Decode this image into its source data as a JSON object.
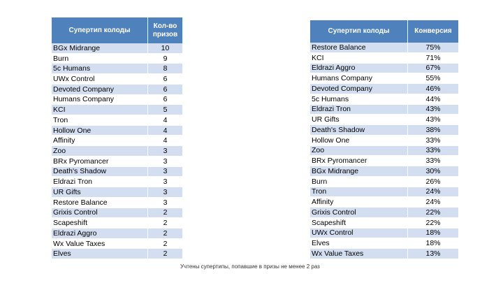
{
  "tables": [
    {
      "header": [
        "Супертип колоды",
        "Кол-во призов"
      ],
      "rows": [
        [
          "BGx Midrange",
          10
        ],
        [
          "Burn",
          9
        ],
        [
          "5c Humans",
          8
        ],
        [
          "UWx Control",
          6
        ],
        [
          "Devoted Company",
          6
        ],
        [
          "Humans Company",
          6
        ],
        [
          "KCI",
          5
        ],
        [
          "Tron",
          4
        ],
        [
          "Hollow One",
          4
        ],
        [
          "Affinity",
          4
        ],
        [
          "Zoo",
          3
        ],
        [
          "BRx Pyromancer",
          3
        ],
        [
          "Death's Shadow",
          3
        ],
        [
          "Eldrazi Tron",
          3
        ],
        [
          "UR Gifts",
          3
        ],
        [
          "Restore Balance",
          3
        ],
        [
          "Grixis Control",
          2
        ],
        [
          "Scapeshift",
          2
        ],
        [
          "Eldrazi Aggro",
          2
        ],
        [
          "Wx Value Taxes",
          2
        ],
        [
          "Elves",
          2
        ]
      ]
    },
    {
      "header": [
        "Супертип колоды",
        "Конверсия"
      ],
      "rows": [
        [
          "Restore Balance",
          "75%"
        ],
        [
          "KCI",
          "71%"
        ],
        [
          "Eldrazi Aggro",
          "67%"
        ],
        [
          "Humans Company",
          "55%"
        ],
        [
          "Devoted Company",
          "46%"
        ],
        [
          "5c Humans",
          "44%"
        ],
        [
          "Eldrazi Tron",
          "43%"
        ],
        [
          "UR Gifts",
          "43%"
        ],
        [
          "Death's Shadow",
          "38%"
        ],
        [
          "Hollow One",
          "33%"
        ],
        [
          "Zoo",
          "33%"
        ],
        [
          "BRx Pyromancer",
          "33%"
        ],
        [
          "BGx Midrange",
          "30%"
        ],
        [
          "Burn",
          "26%"
        ],
        [
          "Tron",
          "24%"
        ],
        [
          "Affinity",
          "24%"
        ],
        [
          "Grixis Control",
          "22%"
        ],
        [
          "Scapeshift",
          "22%"
        ],
        [
          "UWx Control",
          "18%"
        ],
        [
          "Elves",
          "18%"
        ],
        [
          "Wx Value Taxes",
          "13%"
        ]
      ]
    }
  ],
  "note": "Учтены супертипы, попавшие в призы не менее 2 раз"
}
